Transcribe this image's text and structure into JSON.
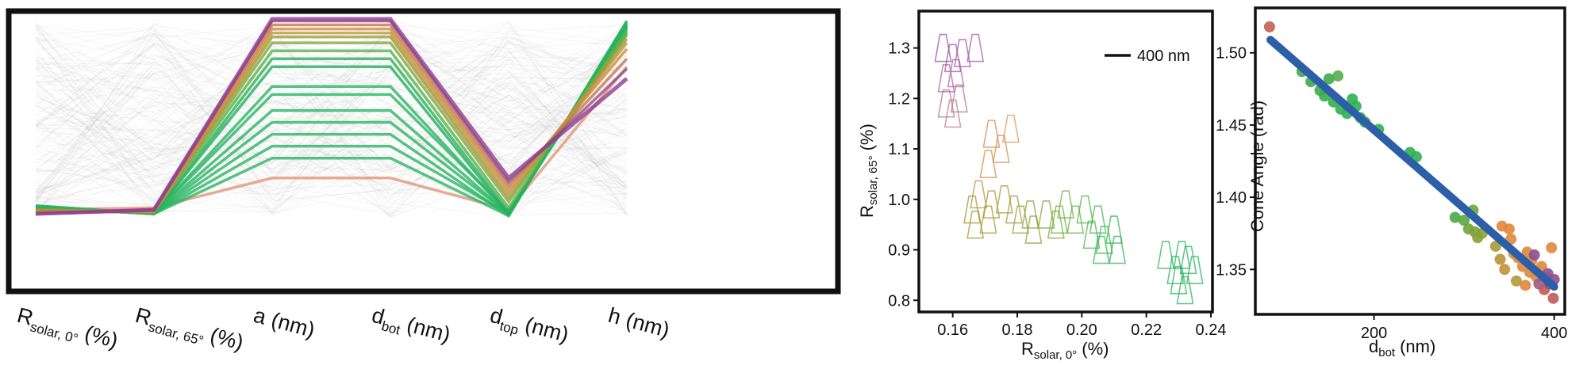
{
  "chart_data": [
    {
      "type": "parallel_coordinates",
      "axes": [
        {
          "label": "R",
          "sub": "solar, 0°",
          "unit": "(%)"
        },
        {
          "label": "R",
          "sub": "solar, 65°",
          "unit": "(%)"
        },
        {
          "label": "a",
          "sub": "",
          "unit": "(nm)"
        },
        {
          "label": "d",
          "sub": "bot",
          "unit": "(nm)"
        },
        {
          "label": "d",
          "sub": "top",
          "unit": "(nm)"
        },
        {
          "label": "h",
          "sub": "",
          "unit": "(nm)"
        }
      ],
      "highlight_lines": [
        {
          "color": "#8e3f8e",
          "values": [
            0.02,
            0.04,
            1.0,
            1.0,
            0.2,
            0.7
          ]
        },
        {
          "color": "#9a4a8a",
          "values": [
            0.02,
            0.04,
            0.99,
            0.99,
            0.18,
            0.75
          ]
        },
        {
          "color": "#c07a4c",
          "values": [
            0.03,
            0.04,
            0.97,
            0.97,
            0.16,
            0.8
          ]
        },
        {
          "color": "#d2883e",
          "values": [
            0.03,
            0.03,
            0.95,
            0.95,
            0.14,
            0.85
          ]
        },
        {
          "color": "#bb9a3e",
          "values": [
            0.03,
            0.03,
            0.93,
            0.93,
            0.12,
            0.88
          ]
        },
        {
          "color": "#a09a3a",
          "values": [
            0.04,
            0.03,
            0.91,
            0.91,
            0.1,
            0.9
          ]
        },
        {
          "color": "#83a93c",
          "values": [
            0.04,
            0.03,
            0.88,
            0.88,
            0.08,
            0.92
          ]
        },
        {
          "color": "#54b44e",
          "values": [
            0.04,
            0.03,
            0.84,
            0.84,
            0.05,
            0.94
          ]
        },
        {
          "color": "#2fb058",
          "values": [
            0.05,
            0.02,
            0.8,
            0.8,
            0.03,
            0.96
          ]
        },
        {
          "color": "#22b060",
          "values": [
            0.05,
            0.02,
            0.76,
            0.76,
            0.02,
            0.97
          ]
        },
        {
          "color": "#2bb564",
          "values": [
            0.05,
            0.02,
            0.66,
            0.66,
            0.02,
            0.95
          ]
        },
        {
          "color": "#2bb564",
          "values": [
            0.05,
            0.02,
            0.62,
            0.62,
            0.03,
            0.93
          ]
        },
        {
          "color": "#2bb564",
          "values": [
            0.05,
            0.02,
            0.54,
            0.54,
            0.02,
            0.96
          ]
        },
        {
          "color": "#2bb564",
          "values": [
            0.05,
            0.02,
            0.48,
            0.48,
            0.02,
            0.98
          ]
        },
        {
          "color": "#2bb564",
          "values": [
            0.06,
            0.02,
            0.42,
            0.42,
            0.01,
            0.99
          ]
        },
        {
          "color": "#2bb564",
          "values": [
            0.06,
            0.02,
            0.36,
            0.36,
            0.02,
            0.97
          ]
        },
        {
          "color": "#2bb564",
          "values": [
            0.06,
            0.02,
            0.3,
            0.3,
            0.01,
            0.99
          ]
        },
        {
          "color": "#e0967a",
          "values": [
            0.04,
            0.05,
            0.2,
            0.2,
            0.04,
            0.76
          ]
        }
      ],
      "background": "many light grey lines"
    },
    {
      "type": "scatter",
      "marker": "triangle outlines",
      "xlabel": "R",
      "xlabel_sub": "solar, 0°",
      "xlabel_unit": "(%)",
      "ylabel": "R",
      "ylabel_sub": "solar, 65°",
      "ylabel_unit": "(%)",
      "xlim": [
        0.15,
        0.24
      ],
      "ylim": [
        0.78,
        1.37
      ],
      "xticks": [
        "0.16",
        "0.18",
        "0.20",
        "0.22",
        "0.24"
      ],
      "yticks": [
        "0.8",
        "0.9",
        "1.0",
        "1.1",
        "1.2",
        "1.3"
      ],
      "scale_bar_label": "400 nm",
      "points": [
        {
          "x": 0.157,
          "y": 1.3,
          "c": "#9f5aa8"
        },
        {
          "x": 0.16,
          "y": 1.28,
          "c": "#9f5aa8"
        },
        {
          "x": 0.163,
          "y": 1.29,
          "c": "#a15da8"
        },
        {
          "x": 0.167,
          "y": 1.3,
          "c": "#a563a6"
        },
        {
          "x": 0.158,
          "y": 1.24,
          "c": "#b06aa0"
        },
        {
          "x": 0.161,
          "y": 1.25,
          "c": "#b06aa0"
        },
        {
          "x": 0.158,
          "y": 1.19,
          "c": "#b8769a"
        },
        {
          "x": 0.162,
          "y": 1.2,
          "c": "#bb7896"
        },
        {
          "x": 0.16,
          "y": 1.17,
          "c": "#c07f92"
        },
        {
          "x": 0.172,
          "y": 1.13,
          "c": "#d9885c"
        },
        {
          "x": 0.175,
          "y": 1.1,
          "c": "#d98f55"
        },
        {
          "x": 0.178,
          "y": 1.14,
          "c": "#e09a58"
        },
        {
          "x": 0.171,
          "y": 1.07,
          "c": "#d4934a"
        },
        {
          "x": 0.168,
          "y": 1.01,
          "c": "#b99a3c"
        },
        {
          "x": 0.166,
          "y": 0.98,
          "c": "#a79a3a"
        },
        {
          "x": 0.172,
          "y": 0.99,
          "c": "#ae9a3c"
        },
        {
          "x": 0.176,
          "y": 1.0,
          "c": "#aa9e3c"
        },
        {
          "x": 0.167,
          "y": 0.95,
          "c": "#a59a38"
        },
        {
          "x": 0.171,
          "y": 0.96,
          "c": "#a79c3a"
        },
        {
          "x": 0.179,
          "y": 0.98,
          "c": "#9fa03c"
        },
        {
          "x": 0.181,
          "y": 0.96,
          "c": "#97a43c"
        },
        {
          "x": 0.184,
          "y": 0.97,
          "c": "#8ea83e"
        },
        {
          "x": 0.185,
          "y": 0.94,
          "c": "#8ca73f"
        },
        {
          "x": 0.189,
          "y": 0.97,
          "c": "#86aa40"
        },
        {
          "x": 0.192,
          "y": 0.95,
          "c": "#7fad42"
        },
        {
          "x": 0.195,
          "y": 0.99,
          "c": "#7bae44"
        },
        {
          "x": 0.193,
          "y": 0.96,
          "c": "#76b046"
        },
        {
          "x": 0.198,
          "y": 0.96,
          "c": "#6ab24a"
        },
        {
          "x": 0.201,
          "y": 0.98,
          "c": "#5cb34e"
        },
        {
          "x": 0.203,
          "y": 0.93,
          "c": "#4eb452"
        },
        {
          "x": 0.205,
          "y": 0.96,
          "c": "#48b455"
        },
        {
          "x": 0.207,
          "y": 0.92,
          "c": "#41b457"
        },
        {
          "x": 0.21,
          "y": 0.94,
          "c": "#3ab55a"
        },
        {
          "x": 0.206,
          "y": 0.9,
          "c": "#36b55c"
        },
        {
          "x": 0.211,
          "y": 0.9,
          "c": "#32b55d"
        },
        {
          "x": 0.226,
          "y": 0.89,
          "c": "#30b45f"
        },
        {
          "x": 0.229,
          "y": 0.86,
          "c": "#2eb460"
        },
        {
          "x": 0.231,
          "y": 0.89,
          "c": "#2db462"
        },
        {
          "x": 0.233,
          "y": 0.88,
          "c": "#2bb463"
        },
        {
          "x": 0.23,
          "y": 0.84,
          "c": "#2bb463"
        },
        {
          "x": 0.235,
          "y": 0.86,
          "c": "#2ab464"
        },
        {
          "x": 0.232,
          "y": 0.82,
          "c": "#2ab464"
        }
      ]
    },
    {
      "type": "scatter",
      "xlabel": "d",
      "xlabel_sub": "bot",
      "xlabel_unit": "(nm)",
      "ylabel": "Cone Angle (rad)",
      "xlim": [
        70,
        410
      ],
      "ylim": [
        1.32,
        1.53
      ],
      "xticks": [
        "200",
        "400"
      ],
      "yticks": [
        "1.35",
        "1.40",
        "1.45",
        "1.50"
      ],
      "fit_line": {
        "x": [
          85,
          400
        ],
        "y": [
          1.509,
          1.338
        ],
        "color": "#2d5fa8"
      },
      "points": [
        {
          "x": 84,
          "y": 1.518,
          "c": "#c55e52"
        },
        {
          "x": 120,
          "y": 1.487,
          "c": "#3eaa48"
        },
        {
          "x": 130,
          "y": 1.48,
          "c": "#3eaa48"
        },
        {
          "x": 140,
          "y": 1.474,
          "c": "#3eaa48"
        },
        {
          "x": 145,
          "y": 1.47,
          "c": "#35ae4c"
        },
        {
          "x": 150,
          "y": 1.482,
          "c": "#3eaa48"
        },
        {
          "x": 155,
          "y": 1.466,
          "c": "#35ae4c"
        },
        {
          "x": 160,
          "y": 1.484,
          "c": "#5aac4a"
        },
        {
          "x": 163,
          "y": 1.461,
          "c": "#2fb050"
        },
        {
          "x": 170,
          "y": 1.458,
          "c": "#2fb050"
        },
        {
          "x": 176,
          "y": 1.468,
          "c": "#2fb050"
        },
        {
          "x": 180,
          "y": 1.463,
          "c": "#2fb050"
        },
        {
          "x": 185,
          "y": 1.455,
          "c": "#2fb050"
        },
        {
          "x": 190,
          "y": 1.452,
          "c": "#2fb050"
        },
        {
          "x": 205,
          "y": 1.447,
          "c": "#2fb050"
        },
        {
          "x": 240,
          "y": 1.431,
          "c": "#2fb050"
        },
        {
          "x": 247,
          "y": 1.428,
          "c": "#2fb050"
        },
        {
          "x": 290,
          "y": 1.386,
          "c": "#4aa844"
        },
        {
          "x": 300,
          "y": 1.384,
          "c": "#5aa83e"
        },
        {
          "x": 305,
          "y": 1.378,
          "c": "#6ba63a"
        },
        {
          "x": 310,
          "y": 1.391,
          "c": "#6ba63a"
        },
        {
          "x": 312,
          "y": 1.376,
          "c": "#7da23a"
        },
        {
          "x": 315,
          "y": 1.372,
          "c": "#8aa038"
        },
        {
          "x": 320,
          "y": 1.375,
          "c": "#8aa038"
        },
        {
          "x": 335,
          "y": 1.366,
          "c": "#a89a36"
        },
        {
          "x": 340,
          "y": 1.357,
          "c": "#b89236"
        },
        {
          "x": 342,
          "y": 1.38,
          "c": "#e08838"
        },
        {
          "x": 345,
          "y": 1.35,
          "c": "#c49036"
        },
        {
          "x": 350,
          "y": 1.378,
          "c": "#e08838"
        },
        {
          "x": 352,
          "y": 1.371,
          "c": "#e08838"
        },
        {
          "x": 355,
          "y": 1.361,
          "c": "#e08838"
        },
        {
          "x": 358,
          "y": 1.342,
          "c": "#b09a3a"
        },
        {
          "x": 360,
          "y": 1.358,
          "c": "#e08838"
        },
        {
          "x": 365,
          "y": 1.352,
          "c": "#e08838"
        },
        {
          "x": 368,
          "y": 1.339,
          "c": "#e08838"
        },
        {
          "x": 370,
          "y": 1.362,
          "c": "#e08838"
        },
        {
          "x": 373,
          "y": 1.348,
          "c": "#e08838"
        },
        {
          "x": 375,
          "y": 1.356,
          "c": "#e08838"
        },
        {
          "x": 378,
          "y": 1.36,
          "c": "#8a4f90"
        },
        {
          "x": 380,
          "y": 1.345,
          "c": "#e08838"
        },
        {
          "x": 383,
          "y": 1.34,
          "c": "#9a5a8a"
        },
        {
          "x": 386,
          "y": 1.352,
          "c": "#e08838"
        },
        {
          "x": 389,
          "y": 1.336,
          "c": "#c05a56"
        },
        {
          "x": 391,
          "y": 1.344,
          "c": "#e08838"
        },
        {
          "x": 393,
          "y": 1.347,
          "c": "#8a4f90"
        },
        {
          "x": 395,
          "y": 1.34,
          "c": "#8a4f90"
        },
        {
          "x": 397,
          "y": 1.365,
          "c": "#e08838"
        },
        {
          "x": 399,
          "y": 1.33,
          "c": "#c05a56"
        },
        {
          "x": 400,
          "y": 1.343,
          "c": "#8a4f90"
        }
      ]
    }
  ]
}
